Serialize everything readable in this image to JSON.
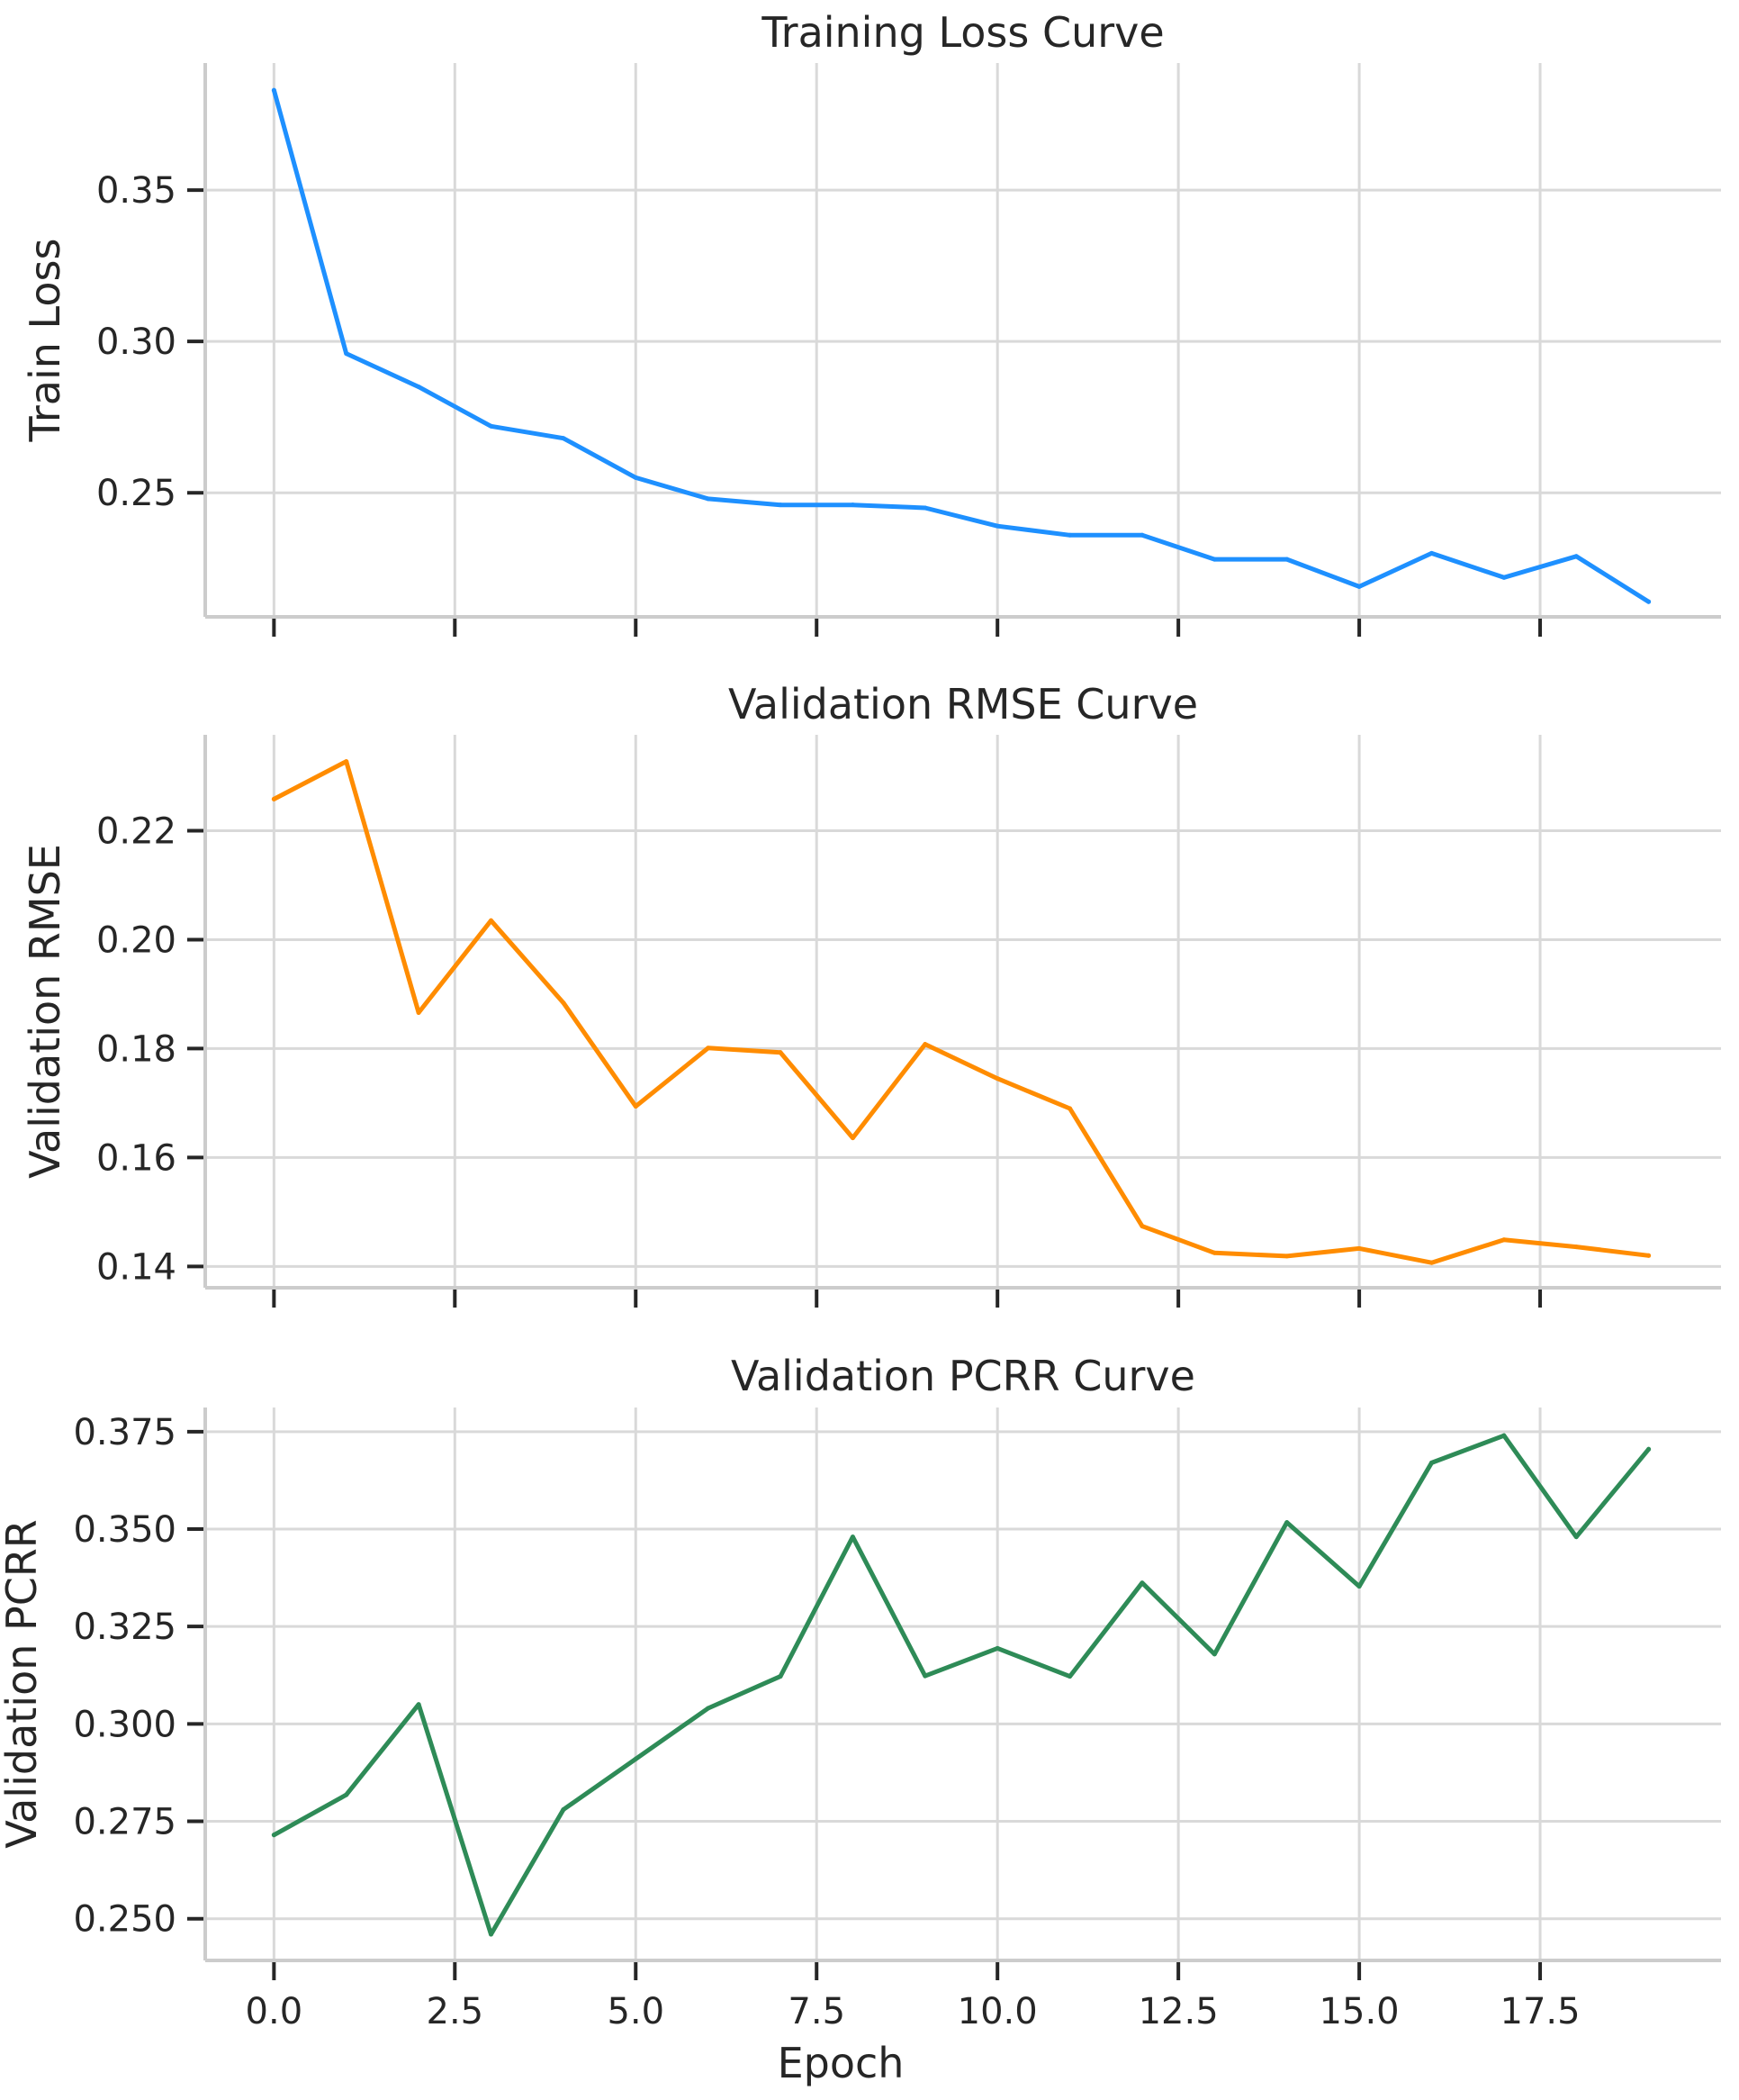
{
  "chart_data": [
    {
      "type": "line",
      "title": "Training Loss Curve",
      "xlabel": "",
      "ylabel": "Train Loss",
      "x": [
        0,
        1,
        2,
        3,
        4,
        5,
        6,
        7,
        8,
        9,
        10,
        11,
        12,
        13,
        14,
        15,
        16,
        17,
        18,
        19
      ],
      "series": [
        {
          "values": [
            0.383,
            0.296,
            0.285,
            0.272,
            0.268,
            0.255,
            0.248,
            0.246,
            0.246,
            0.245,
            0.239,
            0.236,
            0.236,
            0.228,
            0.228,
            0.219,
            0.23,
            0.222,
            0.229,
            0.214
          ],
          "color": "#1e90ff"
        }
      ],
      "xlim": [
        -0.95,
        20.0
      ],
      "ylim": [
        0.209,
        0.392
      ],
      "yticks": [
        0.25,
        0.3,
        0.35
      ],
      "ytick_labels": [
        "0.25",
        "0.30",
        "0.35"
      ],
      "xticks": [
        0,
        2.5,
        5,
        7.5,
        10,
        12.5,
        15,
        17.5
      ],
      "xtick_labels": [],
      "grid": true
    },
    {
      "type": "line",
      "title": "Validation RMSE Curve",
      "xlabel": "",
      "ylabel": "Validation RMSE",
      "x": [
        0,
        1,
        2,
        3,
        4,
        5,
        6,
        7,
        8,
        9,
        10,
        11,
        12,
        13,
        14,
        15,
        16,
        17,
        18,
        19
      ],
      "series": [
        {
          "values": [
            0.2258,
            0.2327,
            0.1866,
            0.2035,
            0.1884,
            0.1694,
            0.1801,
            0.1793,
            0.1636,
            0.1808,
            0.1745,
            0.169,
            0.1474,
            0.1425,
            0.1419,
            0.1433,
            0.1407,
            0.1449,
            0.1436,
            0.142
          ],
          "color": "#ff8c00"
        }
      ],
      "xlim": [
        -0.95,
        20.0
      ],
      "ylim": [
        0.1361,
        0.2376
      ],
      "yticks": [
        0.14,
        0.16,
        0.18,
        0.2,
        0.22
      ],
      "ytick_labels": [
        "0.14",
        "0.16",
        "0.18",
        "0.20",
        "0.22"
      ],
      "xticks": [
        0,
        2.5,
        5,
        7.5,
        10,
        12.5,
        15,
        17.5
      ],
      "xtick_labels": [],
      "grid": true
    },
    {
      "type": "line",
      "title": "Validation PCRR Curve",
      "xlabel": "Epoch",
      "ylabel": "Validation PCRR",
      "x": [
        0,
        1,
        2,
        3,
        4,
        5,
        6,
        7,
        8,
        9,
        10,
        11,
        12,
        13,
        14,
        15,
        16,
        17,
        18,
        19
      ],
      "series": [
        {
          "values": [
            0.2715,
            0.2818,
            0.305,
            0.246,
            0.278,
            0.291,
            0.304,
            0.3122,
            0.348,
            0.3123,
            0.3194,
            0.3122,
            0.3362,
            0.3179,
            0.3517,
            0.3353,
            0.367,
            0.374,
            0.348,
            0.3705
          ],
          "color": "#2e8b57"
        }
      ],
      "xlim": [
        -0.95,
        20.0
      ],
      "ylim": [
        0.2393,
        0.3812
      ],
      "yticks": [
        0.25,
        0.275,
        0.3,
        0.325,
        0.35,
        0.375
      ],
      "ytick_labels": [
        "0.250",
        "0.275",
        "0.300",
        "0.325",
        "0.350",
        "0.375"
      ],
      "xticks": [
        0,
        2.5,
        5,
        7.5,
        10,
        12.5,
        15,
        17.5
      ],
      "xtick_labels": [
        "0.0",
        "2.5",
        "5.0",
        "7.5",
        "10.0",
        "12.5",
        "15.0",
        "17.5"
      ],
      "grid": true
    }
  ]
}
